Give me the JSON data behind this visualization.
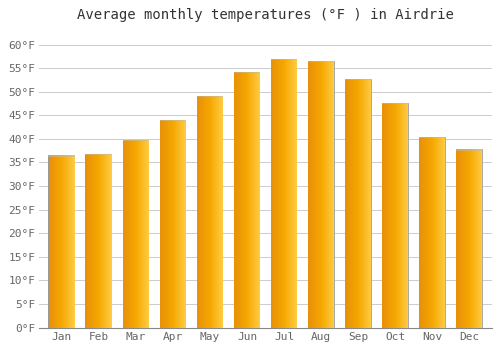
{
  "title": "Average monthly temperatures (°F ) in Airdrie",
  "months": [
    "Jan",
    "Feb",
    "Mar",
    "Apr",
    "May",
    "Jun",
    "Jul",
    "Aug",
    "Sep",
    "Oct",
    "Nov",
    "Dec"
  ],
  "values": [
    36.5,
    36.8,
    39.8,
    44.0,
    49.2,
    54.2,
    57.0,
    56.6,
    52.7,
    47.7,
    40.5,
    37.8
  ],
  "bar_color_left": "#E8900A",
  "bar_color_mid": "#F5A800",
  "bar_color_right": "#FFCC44",
  "bar_edge_color": "#999999",
  "background_color": "#FFFFFF",
  "grid_color": "#CCCCCC",
  "ylim": [
    0,
    63
  ],
  "yticks": [
    0,
    5,
    10,
    15,
    20,
    25,
    30,
    35,
    40,
    45,
    50,
    55,
    60
  ],
  "title_fontsize": 10,
  "tick_fontsize": 8
}
